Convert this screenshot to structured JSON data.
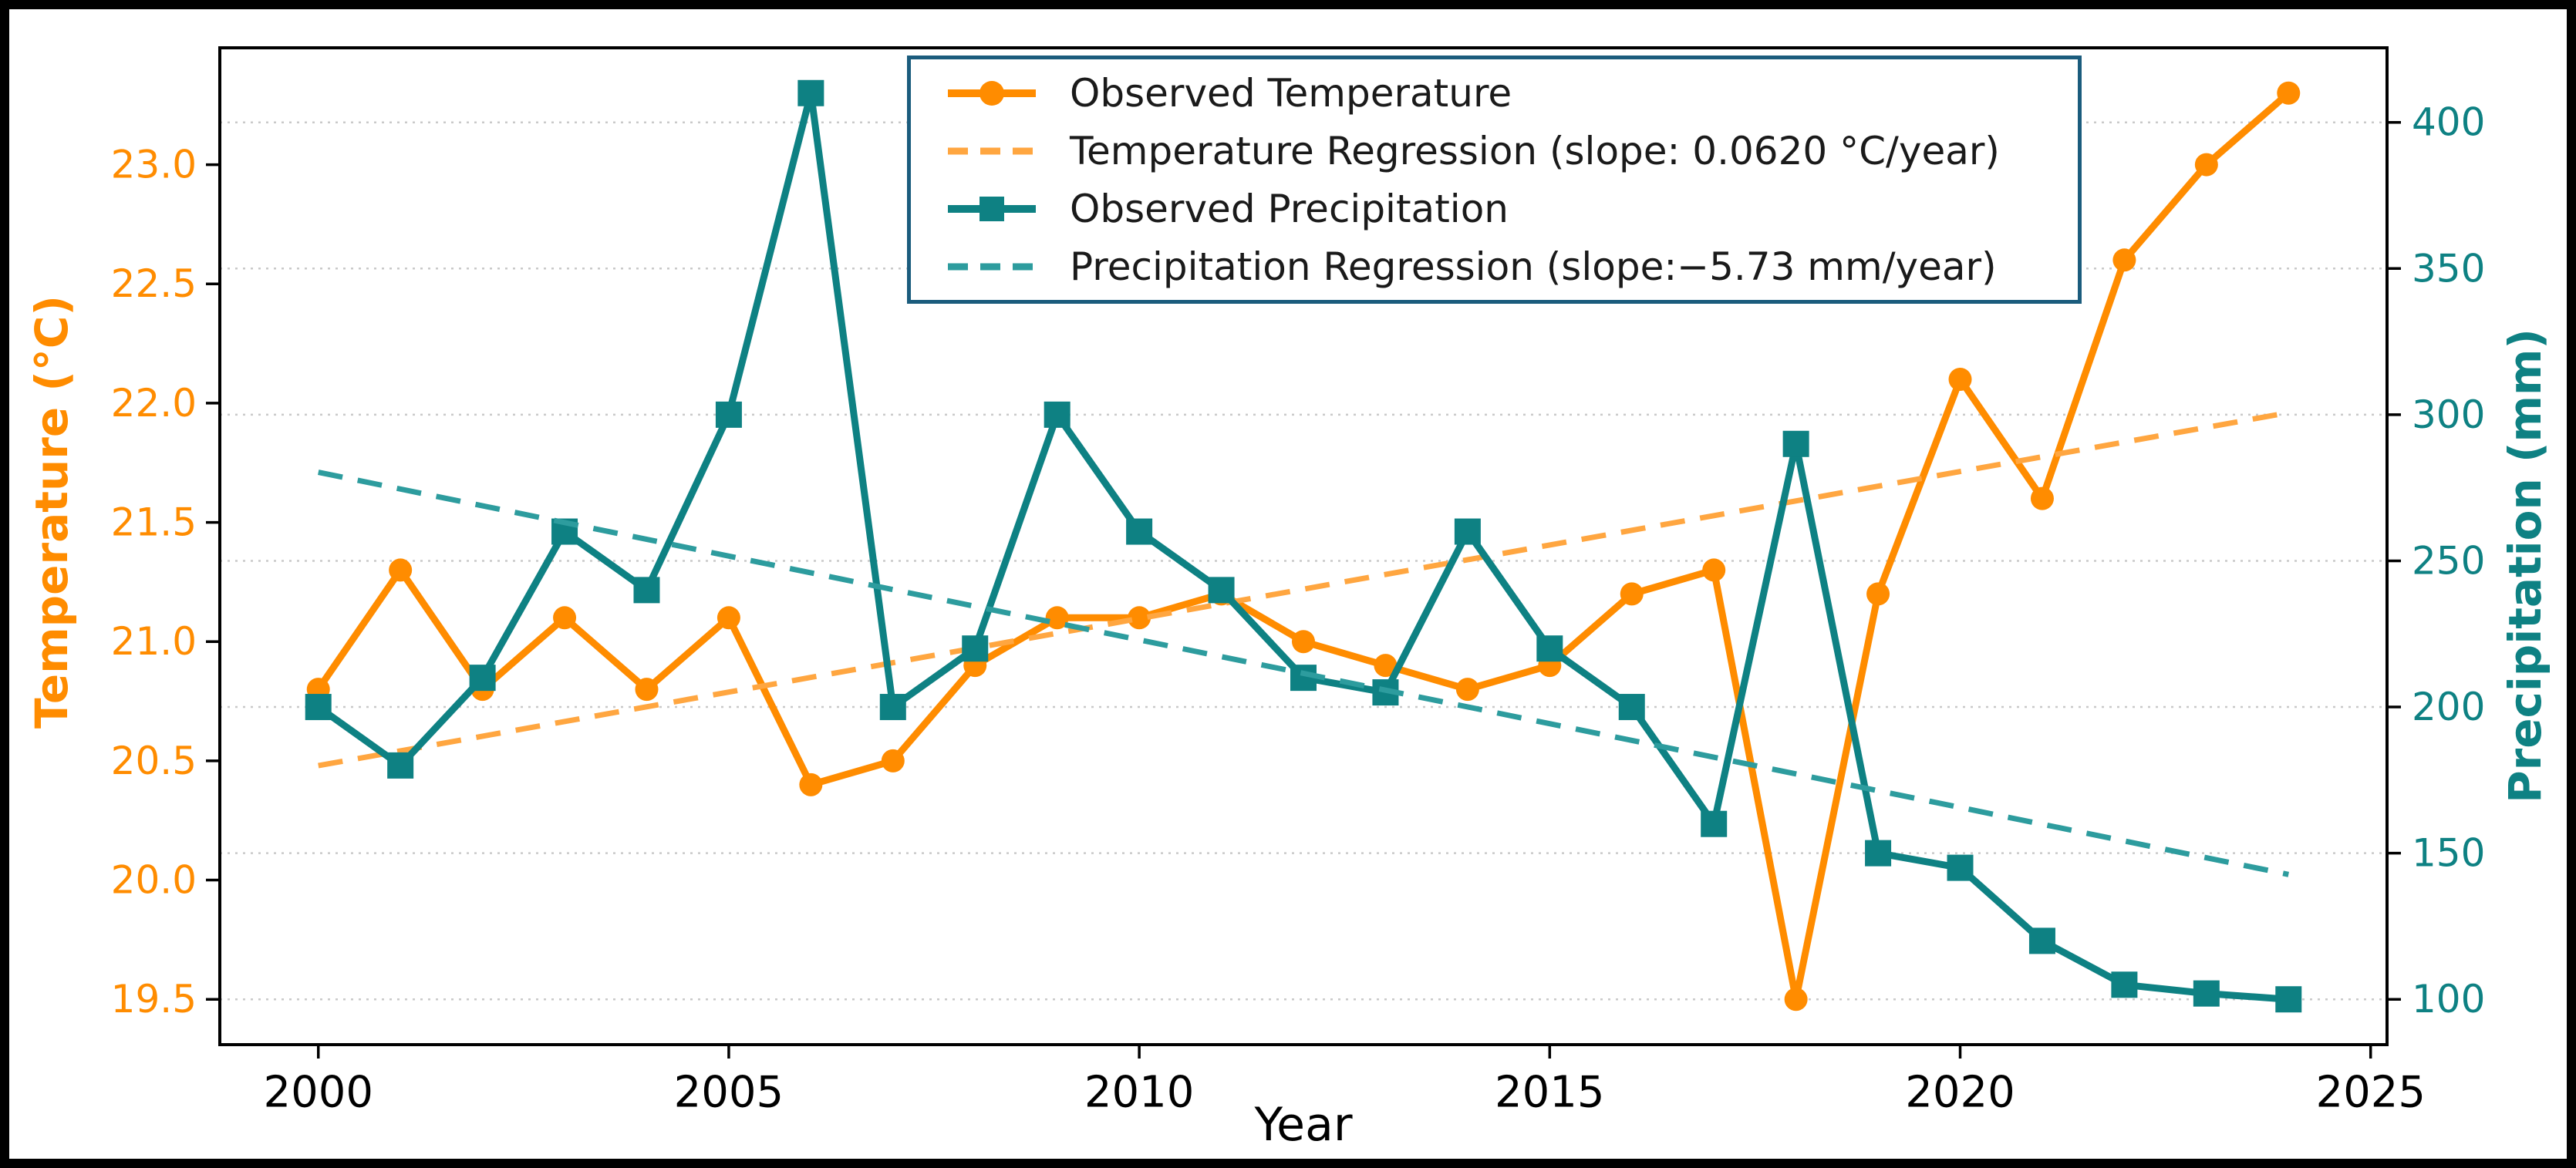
{
  "figure": {
    "background": "#ffffff",
    "border_color": "#000000"
  },
  "chart_data": {
    "type": "line",
    "title": "",
    "xlabel": "Year",
    "years": [
      2000,
      2001,
      2002,
      2003,
      2004,
      2005,
      2006,
      2007,
      2008,
      2009,
      2010,
      2011,
      2012,
      2013,
      2014,
      2015,
      2016,
      2017,
      2018,
      2019,
      2020,
      2021,
      2022,
      2023,
      2024
    ],
    "x_ticks": [
      2000,
      2005,
      2010,
      2015,
      2020,
      2025
    ],
    "xlim": [
      1998.8,
      2025.2
    ],
    "left_axis": {
      "label": "Temperature (°C)",
      "color": "#ff8c00",
      "ticks": [
        19.5,
        20.0,
        20.5,
        21.0,
        21.5,
        22.0,
        22.5,
        23.0
      ],
      "lim": [
        19.31,
        23.49
      ],
      "decimals": 1
    },
    "right_axis": {
      "label": "Precipitation (mm)",
      "color": "#0e8183",
      "ticks": [
        100,
        150,
        200,
        250,
        300,
        350,
        400
      ],
      "lim": [
        84.5,
        425.5
      ],
      "decimals": 0
    },
    "grid": {
      "axis": "right",
      "style": "dotted",
      "color": "#c9c9c9"
    },
    "legend_position": "upper center",
    "legend_border_color": "#1b5c7d",
    "series": [
      {
        "name": "Observed Temperature",
        "axis": "left",
        "style": "solid",
        "marker": "circle",
        "color": "#ff8c00",
        "values": [
          20.8,
          21.3,
          20.8,
          21.1,
          20.8,
          21.1,
          20.4,
          20.5,
          20.9,
          21.1,
          21.1,
          21.2,
          21.0,
          20.9,
          20.8,
          20.9,
          21.2,
          21.3,
          19.5,
          21.2,
          22.1,
          21.6,
          22.6,
          23.0,
          23.3
        ]
      },
      {
        "name": "Temperature Regression (slope: 0.0620 °C/year)",
        "axis": "left",
        "style": "dashed",
        "marker": "none",
        "color": "#ffa640",
        "slope_per_year": 0.062,
        "line": {
          "x": [
            2000,
            2024
          ],
          "y": [
            20.48,
            21.96
          ]
        }
      },
      {
        "name": "Observed Precipitation",
        "axis": "right",
        "style": "solid",
        "marker": "square",
        "color": "#0e8183",
        "values": [
          200,
          180,
          210,
          260,
          240,
          300,
          410,
          200,
          220,
          300,
          260,
          240,
          210,
          205,
          260,
          220,
          200,
          160,
          290,
          150,
          145,
          120,
          105,
          102,
          100
        ]
      },
      {
        "name": "Precipitation Regression (slope:−5.73 mm/year)",
        "axis": "right",
        "style": "dashed",
        "marker": "none",
        "color": "#2d9c9e",
        "slope_per_year": -5.73,
        "line": {
          "x": [
            2000,
            2024
          ],
          "y": [
            280.3,
            142.7
          ]
        }
      }
    ]
  }
}
